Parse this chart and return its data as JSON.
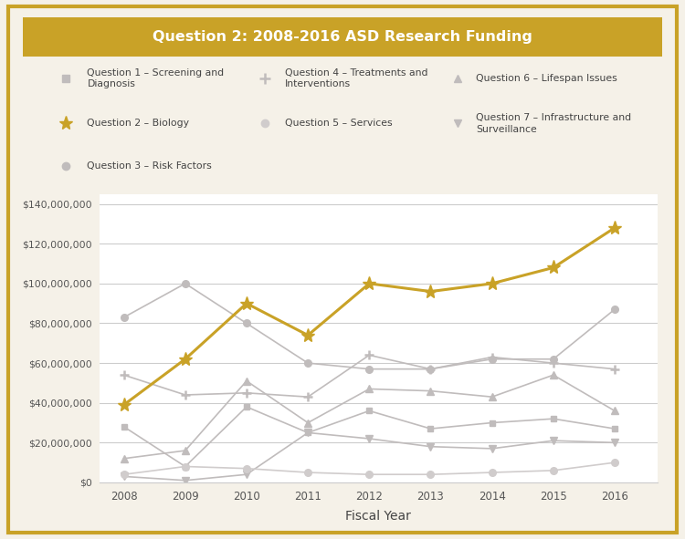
{
  "title": "Question 2: 2008-2016 ASD Research Funding",
  "xlabel": "Fiscal Year",
  "years": [
    2008,
    2009,
    2010,
    2011,
    2012,
    2013,
    2014,
    2015,
    2016
  ],
  "series": {
    "Q1_Screening": [
      28000000,
      8000000,
      38000000,
      25000000,
      36000000,
      27000000,
      30000000,
      32000000,
      27000000
    ],
    "Q2_Biology": [
      39000000,
      62000000,
      90000000,
      74000000,
      100000000,
      96000000,
      100000000,
      108000000,
      128000000
    ],
    "Q3_RiskFactors": [
      83000000,
      100000000,
      80000000,
      60000000,
      57000000,
      57000000,
      62000000,
      62000000,
      87000000
    ],
    "Q4_Treatments": [
      54000000,
      44000000,
      45000000,
      43000000,
      64000000,
      57000000,
      63000000,
      60000000,
      57000000
    ],
    "Q5_Services": [
      4000000,
      8000000,
      7000000,
      5000000,
      4000000,
      4000000,
      5000000,
      6000000,
      10000000
    ],
    "Q6_Lifespan": [
      12000000,
      16000000,
      51000000,
      30000000,
      47000000,
      46000000,
      43000000,
      54000000,
      36000000
    ],
    "Q7_Infrastructure": [
      3000000,
      1000000,
      4000000,
      25000000,
      22000000,
      18000000,
      17000000,
      21000000,
      20000000
    ]
  },
  "highlight_color": "#C9A227",
  "gray_color": "#C0BCBC",
  "background_outer": "#F5F1E8",
  "title_color": "#FFFFFF",
  "ylim": [
    0,
    145000000
  ],
  "yticks": [
    0,
    20000000,
    40000000,
    60000000,
    80000000,
    100000000,
    120000000,
    140000000
  ],
  "legend": {
    "col1": [
      {
        "marker": "s",
        "color_key": "gray",
        "label": "Question 1 – Screening and\nDiagnosis"
      },
      {
        "marker": "*",
        "color_key": "gold",
        "label": "Question 2 – Biology"
      },
      {
        "marker": "o",
        "color_key": "gray",
        "label": "Question 3 – Risk Factors"
      }
    ],
    "col2": [
      {
        "marker": "+",
        "color_key": "gray",
        "label": "Question 4 – Treatments and\nInterventions"
      },
      {
        "marker": "o",
        "color_key": "gray_light",
        "label": "Question 5 – Services"
      }
    ],
    "col3": [
      {
        "marker": "^",
        "color_key": "gray",
        "label": "Question 6 – Lifespan Issues"
      },
      {
        "marker": "v",
        "color_key": "gray",
        "label": "Question 7 – Infrastructure and\nSurveillance"
      }
    ]
  }
}
